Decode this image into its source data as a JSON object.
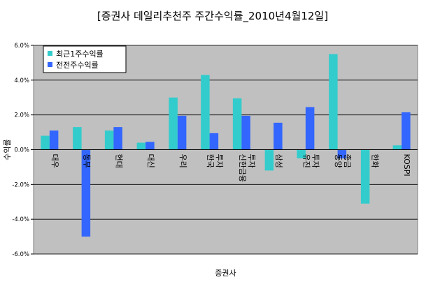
{
  "chart_data": {
    "type": "bar",
    "title": "[증권사 데일리추천주 주간수익률_2010년4월12일]",
    "xlabel": "증권사",
    "ylabel": "수익률",
    "ylim": [
      -6,
      6
    ],
    "ytick_step": 2,
    "ytick_labels": [
      "6.0%",
      "4.0%",
      "2.0%",
      "0.0%",
      "-2.0%",
      "-4.0%",
      "-6.0%"
    ],
    "grid": true,
    "legend_position": "top-left",
    "categories": [
      "대우",
      "동부",
      "현대",
      "대신",
      "우리",
      "한국\n투자",
      "신한금융\n투자",
      "삼성",
      "유진\n투자",
      "동양\n종금",
      "한화",
      "KOSPI"
    ],
    "series": [
      {
        "name": "최근1주수익률",
        "color": "#33cccc",
        "values": [
          0.8,
          1.3,
          1.1,
          0.4,
          3.0,
          4.3,
          2.95,
          -1.2,
          -0.5,
          5.5,
          -3.1,
          0.25
        ]
      },
      {
        "name": "전전주수익률",
        "color": "#3366ff",
        "values": [
          1.1,
          -5.0,
          1.3,
          0.45,
          1.95,
          0.95,
          1.95,
          1.55,
          2.45,
          -0.5,
          0.0,
          2.15
        ]
      }
    ],
    "plot_background": "#c0c0c0"
  }
}
